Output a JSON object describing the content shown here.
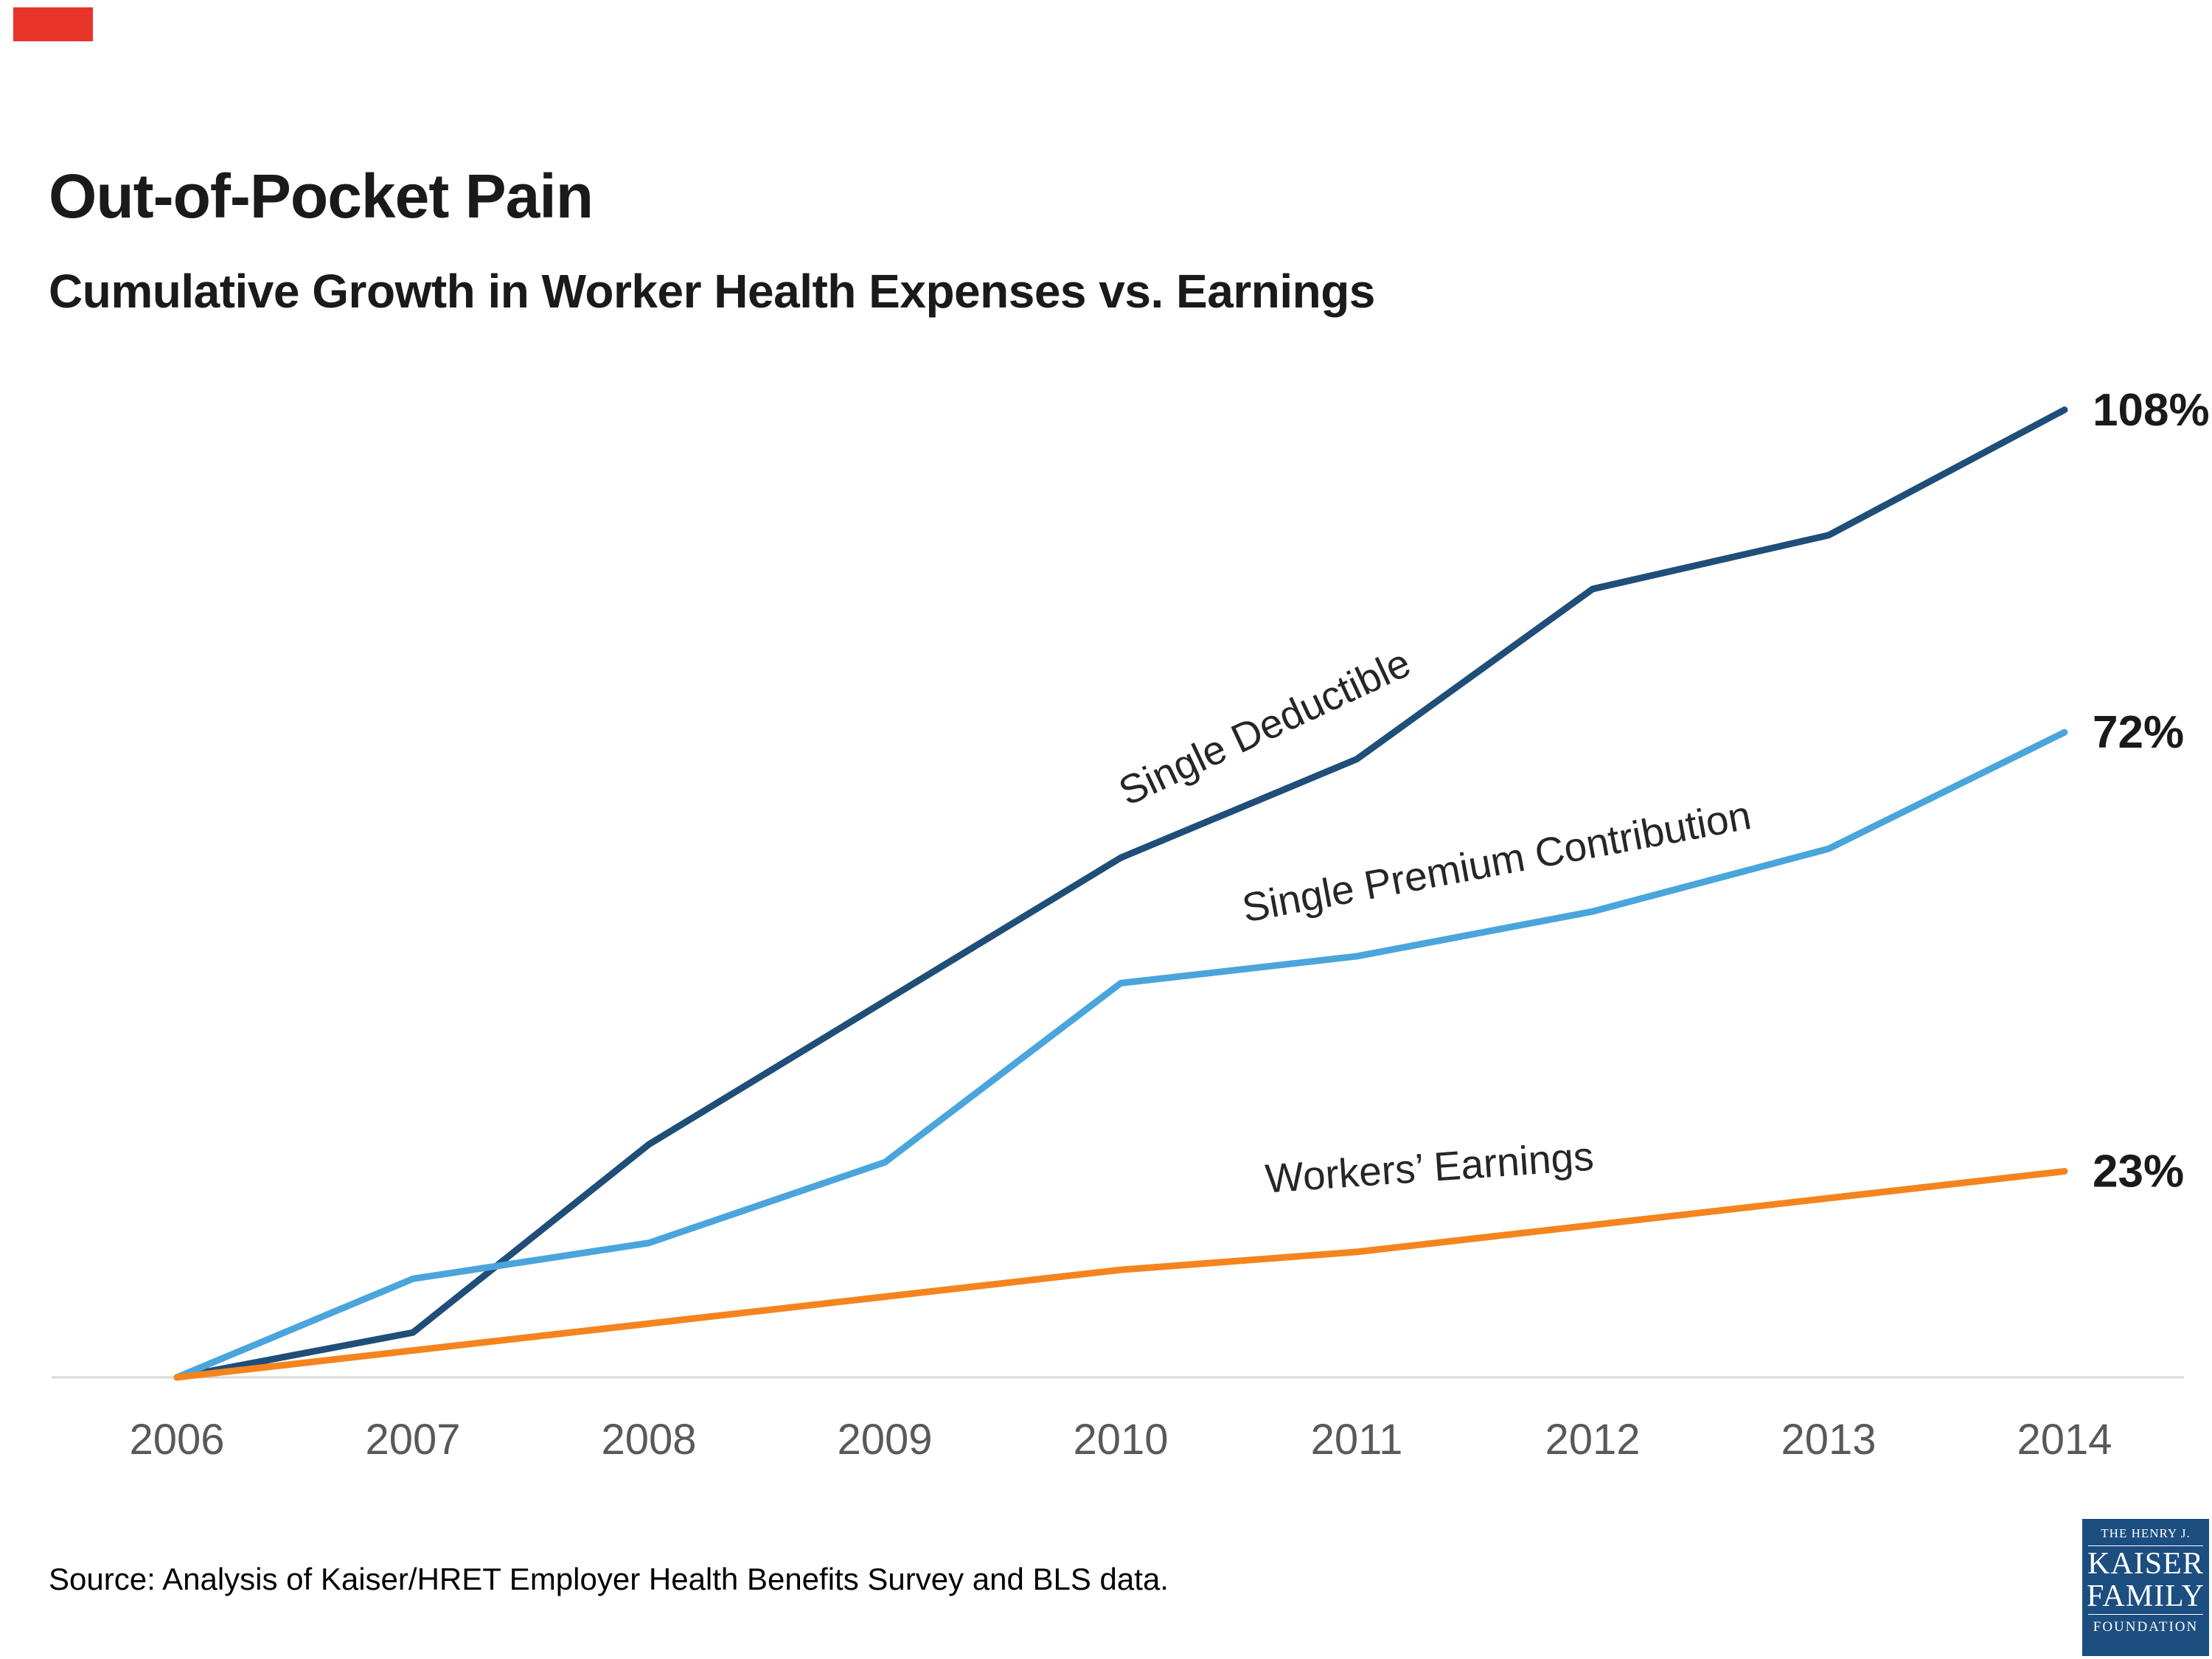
{
  "marker": {
    "color": "#e9342a"
  },
  "header": {
    "title": "Out-of-Pocket Pain",
    "subtitle": "Cumulative Growth in Worker Health Expenses vs. Earnings"
  },
  "chart_data": {
    "type": "line",
    "title": "Cumulative Growth in Worker Health Expenses vs. Earnings",
    "x": [
      "2006",
      "2007",
      "2008",
      "2009",
      "2010",
      "2011",
      "2012",
      "2013",
      "2014"
    ],
    "series": [
      {
        "name": "Single Deductible",
        "color": "#1F4E79",
        "values": [
          0,
          5,
          26,
          42,
          58,
          69,
          88,
          94,
          108
        ],
        "end_label": "108%"
      },
      {
        "name": "Single Premium Contribution",
        "color": "#4AA5DC",
        "values": [
          0,
          11,
          15,
          24,
          44,
          47,
          52,
          59,
          72
        ],
        "end_label": "72%"
      },
      {
        "name": "Workers’ Earnings",
        "color": "#F5841F",
        "values": [
          0,
          3,
          6,
          9,
          12,
          14,
          17,
          20,
          23
        ],
        "end_label": "23%"
      }
    ],
    "xlabel": "",
    "ylabel": "",
    "ylim": [
      0,
      115
    ],
    "grid": false,
    "legend_position": "inline-labels",
    "axis_color": "#d9d9d9",
    "tick_label_color": "#595959",
    "end_label_color": "#1a1a1a",
    "series_label_color": "#262626"
  },
  "footer": {
    "source": "Source: Analysis of Kaiser/HRET Employer Health Benefits Survey and BLS data."
  },
  "logo": {
    "top": "THE HENRY J.",
    "name1": "KAISER",
    "name2": "FAMILY",
    "bottom": "FOUNDATION",
    "bg": "#1C4E80"
  }
}
